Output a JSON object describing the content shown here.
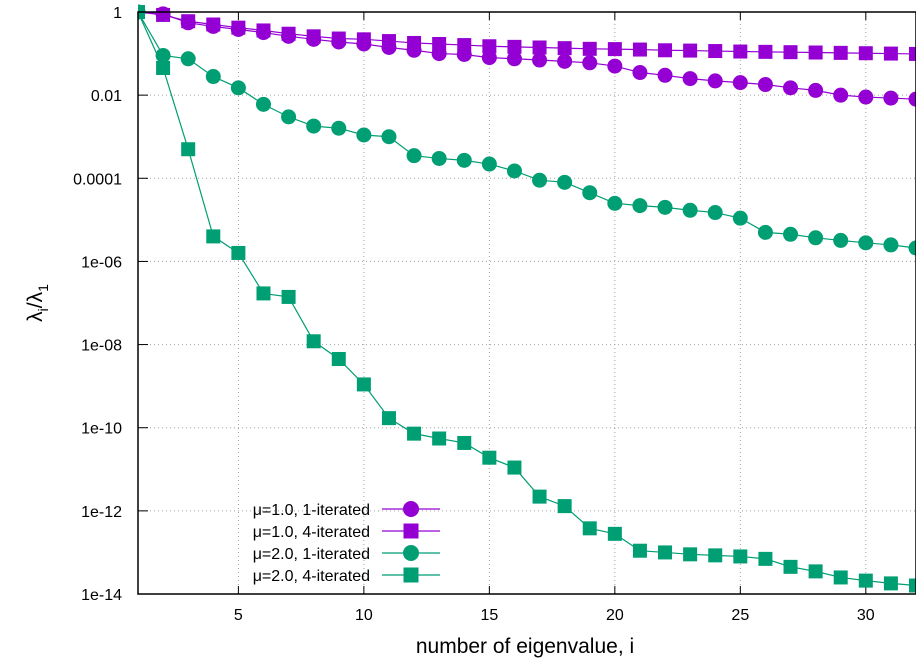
{
  "chart_data": {
    "type": "line",
    "title": "",
    "xlabel": "number of eigenvalue, i",
    "ylabel_main": "λ",
    "ylabel_sub1": "i",
    "ylabel_slash": "/",
    "ylabel_sub2": "1",
    "ylog": true,
    "xlim": [
      1,
      32
    ],
    "ylim": [
      1e-14,
      1
    ],
    "grid": true,
    "legend_position": "bottom-left",
    "x_ticks": [
      5,
      10,
      15,
      20,
      25,
      30
    ],
    "x_tick_labels": [
      "5",
      "10",
      "15",
      "20",
      "25",
      "30"
    ],
    "y_ticks": [
      1,
      0.01,
      0.0001,
      1e-06,
      1e-08,
      1e-10,
      1e-12,
      1e-14
    ],
    "y_tick_labels": [
      "1",
      "0.01",
      "0.0001",
      "1e-06",
      "1e-08",
      "1e-10",
      "1e-12",
      "1e-14"
    ],
    "x": [
      1,
      2,
      3,
      4,
      5,
      6,
      7,
      8,
      9,
      10,
      11,
      12,
      13,
      14,
      15,
      16,
      17,
      18,
      19,
      20,
      21,
      22,
      23,
      24,
      25,
      26,
      27,
      28,
      29,
      30,
      31,
      32
    ],
    "series": [
      {
        "name": "μ=1.0, 1-iterated",
        "color": "#9400d3",
        "marker": "circle",
        "values": [
          1,
          0.9,
          0.55,
          0.45,
          0.38,
          0.32,
          0.26,
          0.22,
          0.19,
          0.17,
          0.14,
          0.12,
          0.1,
          0.095,
          0.08,
          0.075,
          0.07,
          0.065,
          0.06,
          0.05,
          0.035,
          0.03,
          0.025,
          0.022,
          0.02,
          0.018,
          0.015,
          0.013,
          0.01,
          0.009,
          0.0085,
          0.008
        ]
      },
      {
        "name": "μ=1.0, 4-iterated",
        "color": "#9400d3",
        "marker": "square",
        "values": [
          1,
          0.85,
          0.6,
          0.5,
          0.42,
          0.36,
          0.3,
          0.26,
          0.23,
          0.22,
          0.2,
          0.18,
          0.17,
          0.16,
          0.15,
          0.145,
          0.14,
          0.135,
          0.13,
          0.128,
          0.125,
          0.12,
          0.118,
          0.115,
          0.112,
          0.11,
          0.108,
          0.106,
          0.104,
          0.102,
          0.1,
          0.098
        ]
      },
      {
        "name": "μ=2.0, 1-iterated",
        "color": "#009e73",
        "marker": "circle",
        "values": [
          1,
          0.09,
          0.075,
          0.028,
          0.015,
          0.006,
          0.003,
          0.0018,
          0.0016,
          0.0011,
          0.001,
          0.00035,
          0.0003,
          0.00027,
          0.00022,
          0.00015,
          9e-05,
          8e-05,
          4.5e-05,
          2.5e-05,
          2.2e-05,
          2e-05,
          1.7e-05,
          1.5e-05,
          1.1e-05,
          5e-06,
          4.5e-06,
          3.7e-06,
          3.2e-06,
          2.8e-06,
          2.5e-06,
          2.1e-06
        ]
      },
      {
        "name": "μ=2.0, 4-iterated",
        "color": "#009e73",
        "marker": "square",
        "values": [
          1,
          0.045,
          0.0005,
          4e-06,
          1.6e-06,
          1.7e-07,
          1.4e-07,
          1.2e-08,
          4.5e-09,
          1.1e-09,
          1.7e-10,
          7.2e-11,
          5.5e-11,
          4.3e-11,
          1.9e-11,
          1.1e-11,
          2.2e-12,
          1.3e-12,
          3.8e-13,
          2.8e-13,
          1.1e-13,
          1e-13,
          9e-14,
          8.5e-14,
          8e-14,
          7e-14,
          4.5e-14,
          3.5e-14,
          2.5e-14,
          2.1e-14,
          1.8e-14,
          1.6e-14
        ]
      }
    ]
  }
}
